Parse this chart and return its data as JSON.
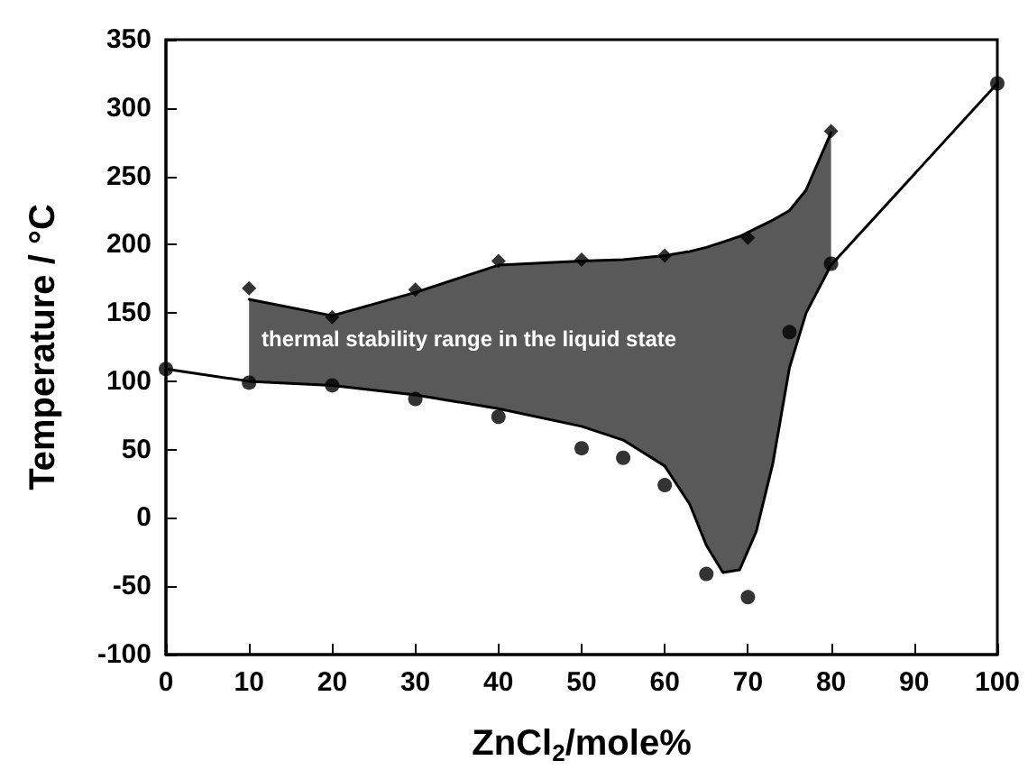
{
  "chart_data": {
    "type": "line",
    "xlabel": "ZnCl$_{2}$/mole%",
    "ylabel": "Temperature / °C",
    "xlim": [
      0,
      100
    ],
    "xticks": [
      0,
      10,
      20,
      30,
      40,
      50,
      60,
      70,
      80,
      90,
      100
    ],
    "ylim": [
      -100,
      350
    ],
    "yticks": [
      -100,
      -50,
      0,
      50,
      100,
      150,
      200,
      250,
      300,
      350
    ],
    "grid": false,
    "series": [
      {
        "type": "line",
        "color": "#000000",
        "marker": "none",
        "line_style": "solid",
        "x": [
          10,
          20,
          30,
          40,
          50,
          55,
          60,
          63,
          65,
          67,
          69,
          71,
          73,
          75,
          77,
          80
        ],
        "values": [
          160,
          148,
          165,
          185,
          188,
          189,
          192,
          195,
          198,
          202,
          206,
          212,
          218,
          225,
          240,
          282
        ],
        "lower": [
          100,
          97,
          90,
          80,
          67,
          57,
          38,
          10,
          -20,
          -40,
          -38,
          -10,
          40,
          110,
          150,
          185
        ],
        "upper": [
          160,
          148,
          165,
          185,
          188,
          189,
          192,
          195,
          198,
          202,
          206,
          212,
          218,
          225,
          240,
          282
        ]
      },
      {
        "color": "#000000",
        "marker": "none",
        "line_style": "solid",
        "x": [
          0,
          10,
          20,
          30,
          40,
          50,
          55,
          60,
          63,
          65,
          67,
          69,
          71,
          73,
          75,
          77,
          80,
          100
        ],
        "values": [
          109,
          100,
          97,
          90,
          80,
          67,
          57,
          38,
          10,
          -20,
          -40,
          -38,
          -10,
          40,
          110,
          150,
          185,
          318
        ]
      },
      {
        "type": "scatter",
        "color": "#000000",
        "marker": "circle",
        "x": [
          0,
          10,
          20,
          30,
          40,
          50,
          55,
          60,
          65,
          70,
          75,
          80,
          100
        ],
        "values": [
          109,
          99,
          97,
          87,
          74,
          51,
          44,
          24,
          -41,
          -58,
          136,
          186,
          318
        ]
      },
      {
        "type": "scatter",
        "color": "#000000",
        "marker": "diamond",
        "x": [
          10,
          20,
          30,
          40,
          50,
          60,
          70,
          80
        ],
        "values": [
          168,
          147,
          167,
          188,
          189,
          192,
          205,
          283
        ]
      }
    ],
    "annotations": [
      "thermal stability range in the liquid state"
    ]
  }
}
